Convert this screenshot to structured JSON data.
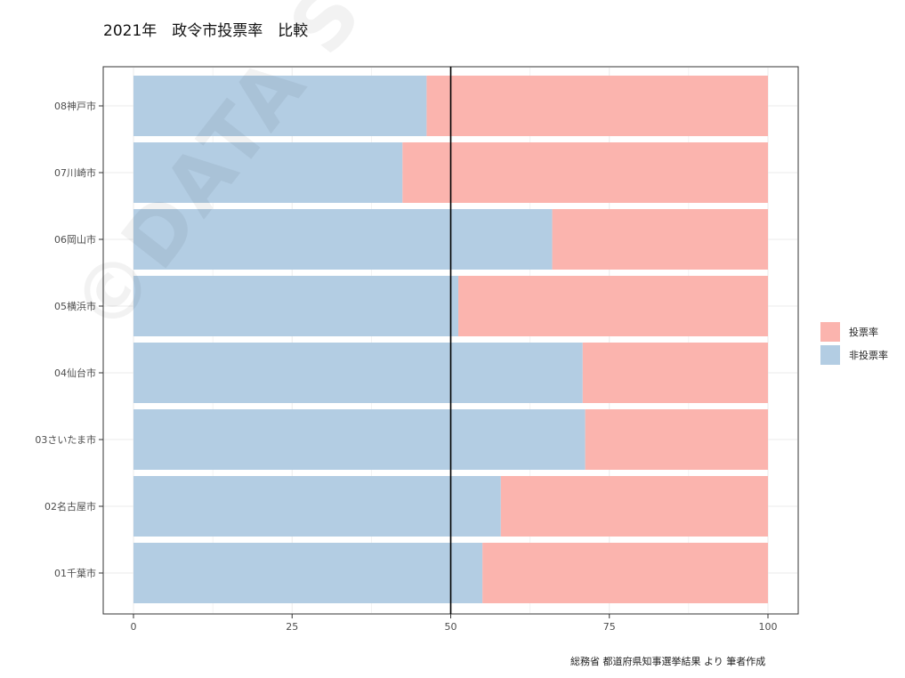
{
  "chart_data": {
    "type": "bar",
    "orientation": "horizontal",
    "stacked": true,
    "title": "2021年　政令市投票率　比較",
    "categories": [
      "01千葉市",
      "02名古屋市",
      "03さいたま市",
      "04仙台市",
      "05横浜市",
      "06岡山市",
      "07川崎市",
      "08神戸市"
    ],
    "series": [
      {
        "name": "非投票率",
        "color": "#b3cde3",
        "values": [
          55.0,
          57.9,
          71.2,
          70.8,
          51.2,
          66.0,
          42.4,
          46.2
        ]
      },
      {
        "name": "投票率",
        "color": "#fbb4ae",
        "values": [
          45.0,
          42.1,
          28.8,
          29.2,
          48.8,
          34.0,
          57.6,
          53.8
        ]
      }
    ],
    "legend_order": [
      "投票率",
      "非投票率"
    ],
    "xlim": [
      0,
      100
    ],
    "xticks": [
      "0",
      "25",
      "50",
      "75",
      "100"
    ],
    "reference_line": 50,
    "grid": true,
    "legend_position": "right",
    "caption": "総務省 都道府県知事選挙結果 より 筆者作成",
    "watermark": "©DATA STATS JP"
  }
}
